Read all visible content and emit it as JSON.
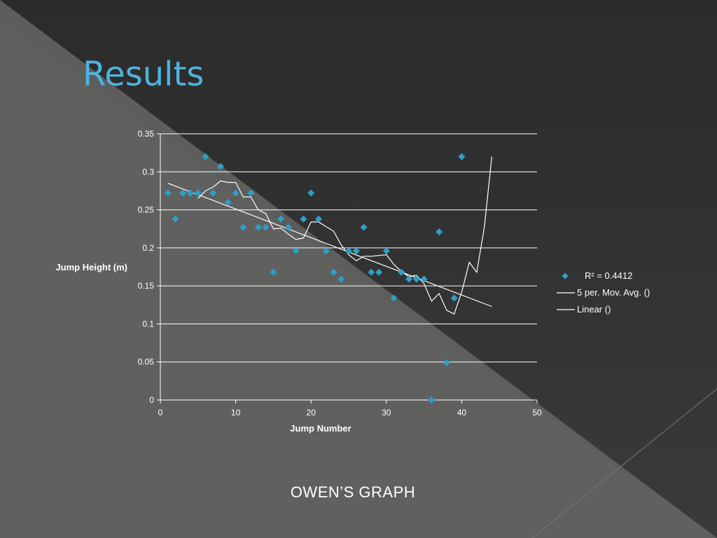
{
  "slide": {
    "title": "Results",
    "caption": "OWEN’S GRAPH"
  },
  "colors": {
    "title": "#4fb3df",
    "marker": "#2e9fc9",
    "line": "#ffffff",
    "gridline": "#ffffff"
  },
  "chart_data": {
    "type": "scatter",
    "xlabel": "Jump Number",
    "ylabel": "Jump Height (m)",
    "xlim": [
      0,
      50
    ],
    "ylim": [
      0,
      0.35
    ],
    "x_ticks": [
      0,
      10,
      20,
      30,
      40,
      50
    ],
    "y_ticks": [
      0,
      0.05,
      0.1,
      0.15,
      0.2,
      0.25,
      0.3,
      0.35
    ],
    "y_tick_labels": [
      "0",
      "0.05",
      "0.1",
      "0.15",
      "0.2",
      "0.25",
      "0.3",
      "0.35"
    ],
    "grid": "horizontal",
    "legend_position": "right",
    "series": [
      {
        "name": "R² = 0.4412",
        "kind": "scatter",
        "marker": "diamond",
        "x": [
          1,
          2,
          3,
          4,
          5,
          6,
          7,
          8,
          9,
          10,
          11,
          12,
          13,
          14,
          15,
          16,
          17,
          18,
          19,
          20,
          21,
          22,
          23,
          24,
          25,
          26,
          27,
          28,
          29,
          30,
          31,
          32,
          33,
          34,
          35,
          36,
          37,
          38,
          39,
          40
        ],
        "y": [
          0.272,
          0.238,
          0.272,
          0.272,
          0.272,
          0.32,
          0.272,
          0.307,
          0.26,
          0.272,
          0.227,
          0.272,
          0.227,
          0.227,
          0.168,
          0.238,
          0.227,
          0.196,
          0.238,
          0.272,
          0.238,
          0.196,
          0.168,
          0.159,
          0.196,
          0.196,
          0.227,
          0.168,
          0.168,
          0.196,
          0.134,
          0.168,
          0.159,
          0.159,
          0.159,
          0.0,
          0.221,
          0.049,
          0.134,
          0.32
        ]
      },
      {
        "name": "5 per. Mov. Avg. ()",
        "kind": "line",
        "x": [
          5,
          6,
          7,
          8,
          9,
          10,
          11,
          12,
          13,
          14,
          15,
          16,
          17,
          18,
          19,
          20,
          21,
          22,
          23,
          24,
          25,
          26,
          27,
          28,
          29,
          30,
          31,
          32,
          33,
          34,
          35,
          36,
          37,
          38,
          39,
          40,
          41,
          42,
          43,
          44
        ],
        "y": [
          0.265,
          0.275,
          0.28,
          0.288,
          0.286,
          0.286,
          0.267,
          0.267,
          0.25,
          0.245,
          0.225,
          0.226,
          0.218,
          0.211,
          0.213,
          0.234,
          0.234,
          0.228,
          0.222,
          0.204,
          0.191,
          0.183,
          0.189,
          0.189,
          0.19,
          0.191,
          0.178,
          0.169,
          0.162,
          0.164,
          0.153,
          0.13,
          0.14,
          0.118,
          0.113,
          0.142,
          0.181,
          0.168,
          0.227,
          0.32
        ]
      },
      {
        "name": "Linear ()",
        "kind": "line",
        "x": [
          1,
          44
        ],
        "y": [
          0.285,
          0.123
        ]
      }
    ]
  }
}
